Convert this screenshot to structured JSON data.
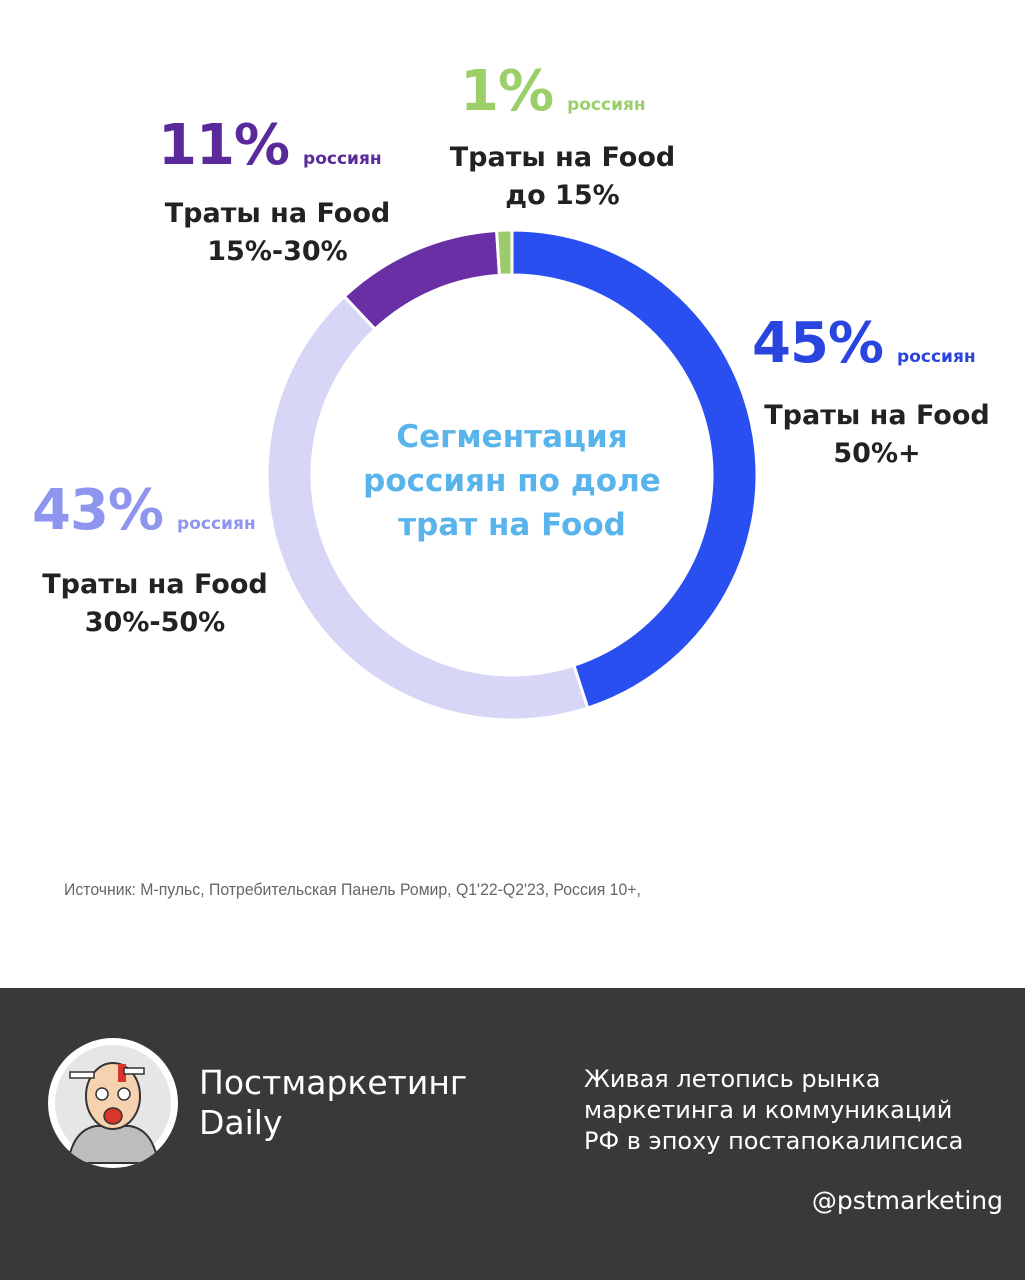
{
  "chart_data": {
    "type": "pie",
    "title": "Сегментация россиян по доле трат на Food",
    "center_title_lines": [
      "Сегментация",
      "россиян по доле",
      "трат на Food"
    ],
    "unit_label": "россиян",
    "slices": [
      {
        "pct_label": "45%",
        "value": 45,
        "line1": "Траты на Food",
        "line2": "50%+",
        "color": "#2a4ff0",
        "label_color": "#2a44e0"
      },
      {
        "pct_label": "43%",
        "value": 43,
        "line1": "Траты на Food",
        "line2": "30%-50%",
        "color": "#d8d6f7",
        "label_color": "#8e95ee"
      },
      {
        "pct_label": "11%",
        "value": 11,
        "line1": "Траты на Food",
        "line2": "15%-30%",
        "color": "#6a2fa5",
        "label_color": "#5a2a9a"
      },
      {
        "pct_label": "1%",
        "value": 1,
        "line1": "Траты на Food",
        "line2": "до 15%",
        "color": "#9ccb6b",
        "label_color": "#9ccf6a"
      }
    ],
    "center_color": "#5ab4ec"
  },
  "source": "Источник: М-пульс, Потребительская Панель Ромир, Q1'22-Q2'23, Россия 10+,",
  "footer": {
    "brand_line1": "Постмаркетинг",
    "brand_line2": "Daily",
    "tagline": [
      "Живая летопись рынка",
      "маркетинга и коммуникаций",
      "РФ в эпоху постапокалипсиса"
    ],
    "handle": "@pstmarketing",
    "background": "#393939"
  }
}
